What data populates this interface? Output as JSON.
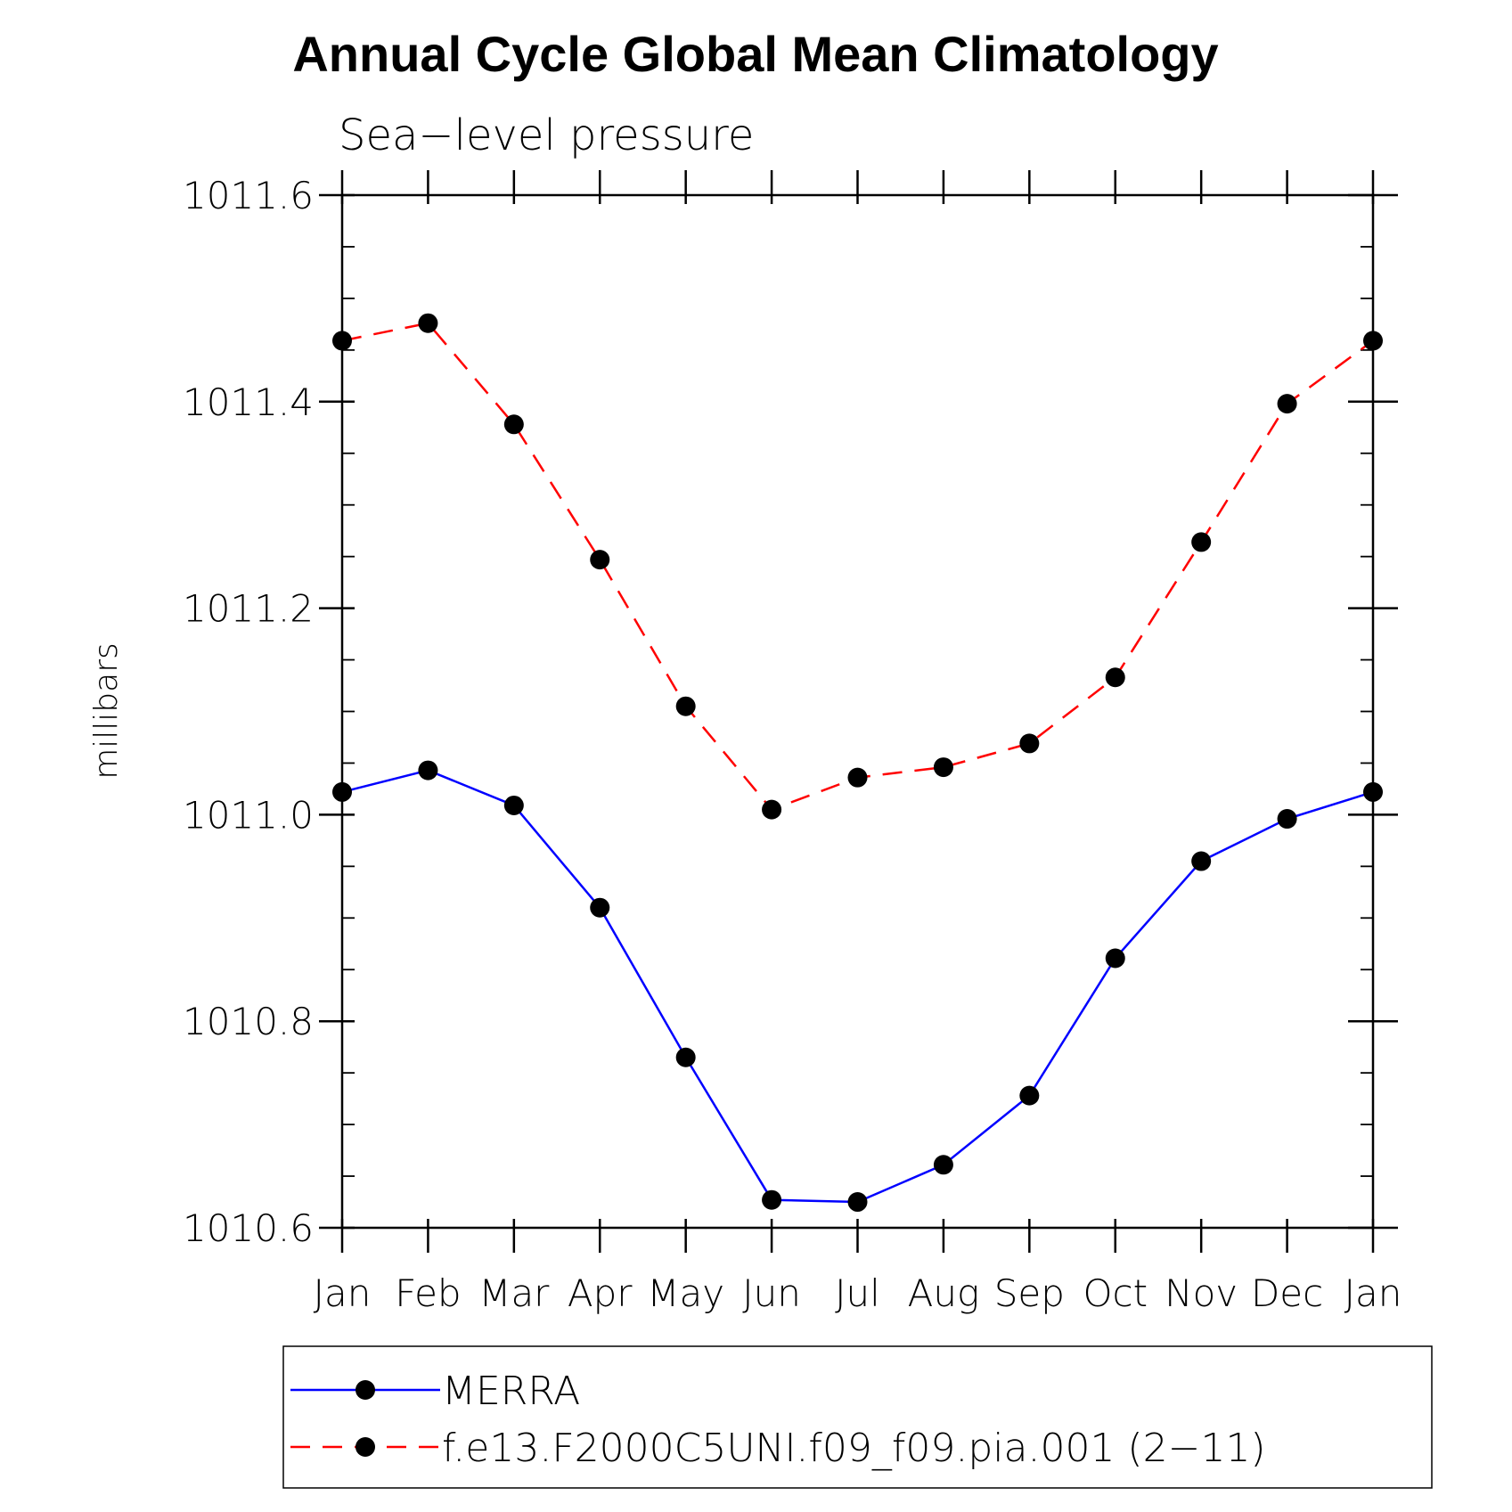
{
  "chart_data": {
    "type": "line",
    "title": "Annual Cycle Global Mean Climatology",
    "subtitle": "Sea−level pressure",
    "ylabel": "millibars",
    "xlabel": "",
    "ylim": [
      1010.6,
      1011.6
    ],
    "y_ticks": [
      "1010.6",
      "1010.8",
      "1011.0",
      "1011.2",
      "1011.4",
      "1011.6"
    ],
    "y_tick_values": [
      1010.6,
      1010.8,
      1011.0,
      1011.2,
      1011.4,
      1011.6
    ],
    "y_minor_step": 0.05,
    "categories": [
      "Jan",
      "Feb",
      "Mar",
      "Apr",
      "May",
      "Jun",
      "Jul",
      "Aug",
      "Sep",
      "Oct",
      "Nov",
      "Dec",
      "Jan"
    ],
    "series": [
      {
        "name": "MERRA",
        "color": "#0000ff",
        "dash": "solid",
        "values": [
          1011.022,
          1011.043,
          1011.009,
          1010.91,
          1010.765,
          1010.627,
          1010.625,
          1010.661,
          1010.728,
          1010.861,
          1010.955,
          1010.996,
          1011.022
        ]
      },
      {
        "name": "f.e13.F2000C5UNI.f09_f09.pia.001 (2−11)",
        "color": "#ff0000",
        "dash": "dashed",
        "values": [
          1011.459,
          1011.476,
          1011.378,
          1011.247,
          1011.105,
          1011.005,
          1011.036,
          1011.046,
          1011.069,
          1011.133,
          1011.264,
          1011.398,
          1011.459
        ]
      }
    ],
    "marker_color": "#000000",
    "legend_position": "bottom"
  }
}
